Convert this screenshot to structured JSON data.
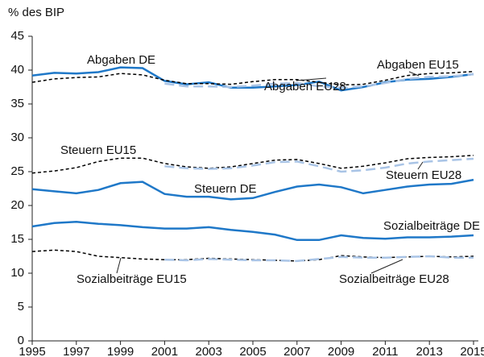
{
  "chart_data": {
    "type": "line",
    "ylabel": "% des BIP",
    "x": [
      1995,
      1996,
      1997,
      1998,
      1999,
      2000,
      2001,
      2002,
      2003,
      2004,
      2005,
      2006,
      2007,
      2008,
      2009,
      2010,
      2011,
      2012,
      2013,
      2014,
      2015
    ],
    "xlim": [
      1995,
      2015
    ],
    "xticks": [
      1995,
      1997,
      1999,
      2001,
      2003,
      2005,
      2007,
      2009,
      2011,
      2013,
      2015
    ],
    "ylim": [
      0,
      45
    ],
    "yticks": [
      0,
      5,
      10,
      15,
      20,
      25,
      30,
      35,
      40,
      45
    ],
    "grid": false,
    "series": [
      {
        "name": "Abgaben DE",
        "color": "#1f78c8",
        "dash": "solid",
        "values": [
          39.2,
          39.6,
          39.5,
          39.7,
          40.4,
          40.3,
          38.4,
          37.9,
          38.2,
          37.4,
          37.4,
          37.6,
          37.8,
          38.3,
          37.0,
          37.5,
          38.2,
          38.6,
          38.7,
          39.0,
          39.4
        ]
      },
      {
        "name": "Abgaben EU15",
        "color": "#000000",
        "dash": "dotted",
        "values": [
          38.2,
          38.7,
          38.9,
          39.0,
          39.5,
          39.3,
          38.5,
          38.0,
          38.0,
          37.9,
          38.3,
          38.6,
          38.6,
          38.2,
          37.8,
          37.9,
          38.5,
          39.2,
          39.5,
          39.6,
          39.8
        ]
      },
      {
        "name": "Abgaben EU28",
        "color": "#a9c4e6",
        "dash": "dashed",
        "values": [
          null,
          null,
          null,
          null,
          null,
          null,
          38.0,
          37.6,
          37.6,
          37.5,
          37.7,
          38.0,
          38.1,
          37.6,
          37.4,
          37.6,
          38.1,
          38.7,
          39.0,
          39.1,
          39.4
        ]
      },
      {
        "name": "Steuern EU15",
        "color": "#000000",
        "dash": "dotted",
        "values": [
          24.8,
          25.1,
          25.6,
          26.5,
          27.0,
          27.0,
          26.2,
          25.7,
          25.5,
          25.7,
          26.2,
          26.7,
          26.8,
          26.2,
          25.5,
          25.8,
          26.3,
          26.9,
          27.1,
          27.2,
          27.4
        ]
      },
      {
        "name": "Steuern EU28",
        "color": "#a9c4e6",
        "dash": "dashed",
        "values": [
          null,
          null,
          null,
          null,
          null,
          null,
          25.8,
          25.5,
          25.4,
          25.5,
          25.9,
          26.4,
          26.5,
          25.8,
          25.0,
          25.2,
          25.6,
          26.2,
          26.5,
          26.7,
          26.9
        ]
      },
      {
        "name": "Steuern DE",
        "color": "#1f78c8",
        "dash": "solid",
        "values": [
          22.4,
          22.1,
          21.8,
          22.3,
          23.3,
          23.5,
          21.7,
          21.3,
          21.3,
          20.9,
          21.1,
          22.0,
          22.8,
          23.1,
          22.7,
          21.8,
          22.3,
          22.8,
          23.1,
          23.2,
          23.8
        ]
      },
      {
        "name": "Sozialbeiträge DE",
        "color": "#1f78c8",
        "dash": "solid",
        "values": [
          16.9,
          17.4,
          17.6,
          17.3,
          17.1,
          16.8,
          16.6,
          16.6,
          16.8,
          16.4,
          16.1,
          15.7,
          14.9,
          14.9,
          15.6,
          15.2,
          15.1,
          15.3,
          15.3,
          15.4,
          15.6
        ]
      },
      {
        "name": "Sozialbeiträge EU15",
        "color": "#000000",
        "dash": "dotted",
        "values": [
          13.2,
          13.4,
          13.2,
          12.5,
          12.3,
          12.1,
          12.0,
          12.0,
          12.2,
          12.1,
          12.0,
          11.9,
          11.8,
          12.0,
          12.6,
          12.4,
          12.3,
          12.4,
          12.5,
          12.4,
          12.5
        ]
      },
      {
        "name": "Sozialbeiträge EU28",
        "color": "#a9c4e6",
        "dash": "dashed",
        "values": [
          null,
          null,
          null,
          null,
          null,
          null,
          12.0,
          11.9,
          12.1,
          12.0,
          11.9,
          11.9,
          11.8,
          12.1,
          12.4,
          12.3,
          12.3,
          12.4,
          12.5,
          12.3,
          12.3
        ]
      }
    ]
  }
}
